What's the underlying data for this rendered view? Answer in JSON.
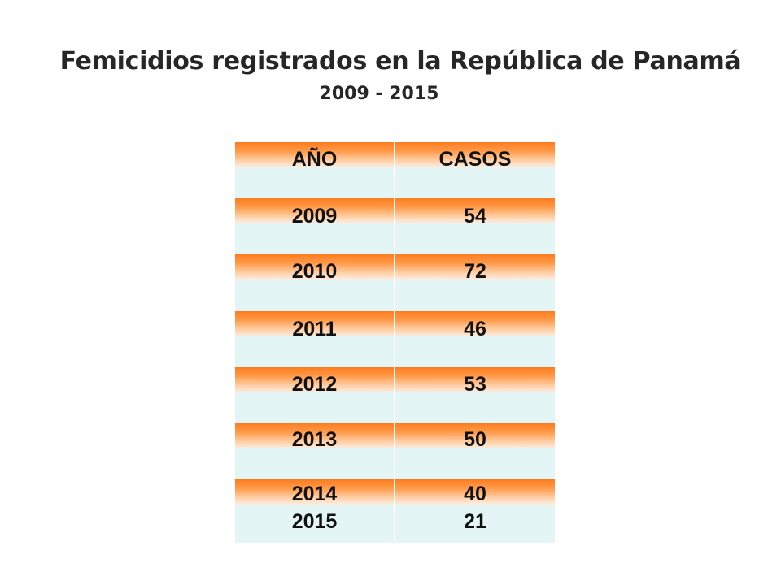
{
  "title": "Femicidios registrados en la República de Panamá",
  "subtitle": "2009 - 2015",
  "colors": {
    "band_orange": "#ff7c1e",
    "row_background": "#e4f5f6",
    "text": "#111111"
  },
  "chart_data": {
    "type": "table",
    "title": "Femicidios registrados en la República de Panamá",
    "subtitle": "2009 - 2015",
    "columns": [
      "AÑO",
      "CASOS"
    ],
    "rows": [
      [
        "2009",
        "54"
      ],
      [
        "2010",
        "72"
      ],
      [
        "2011",
        "46"
      ],
      [
        "2012",
        "53"
      ],
      [
        "2013",
        "50"
      ],
      [
        "2014",
        "40"
      ],
      [
        "2015",
        "21"
      ]
    ]
  }
}
